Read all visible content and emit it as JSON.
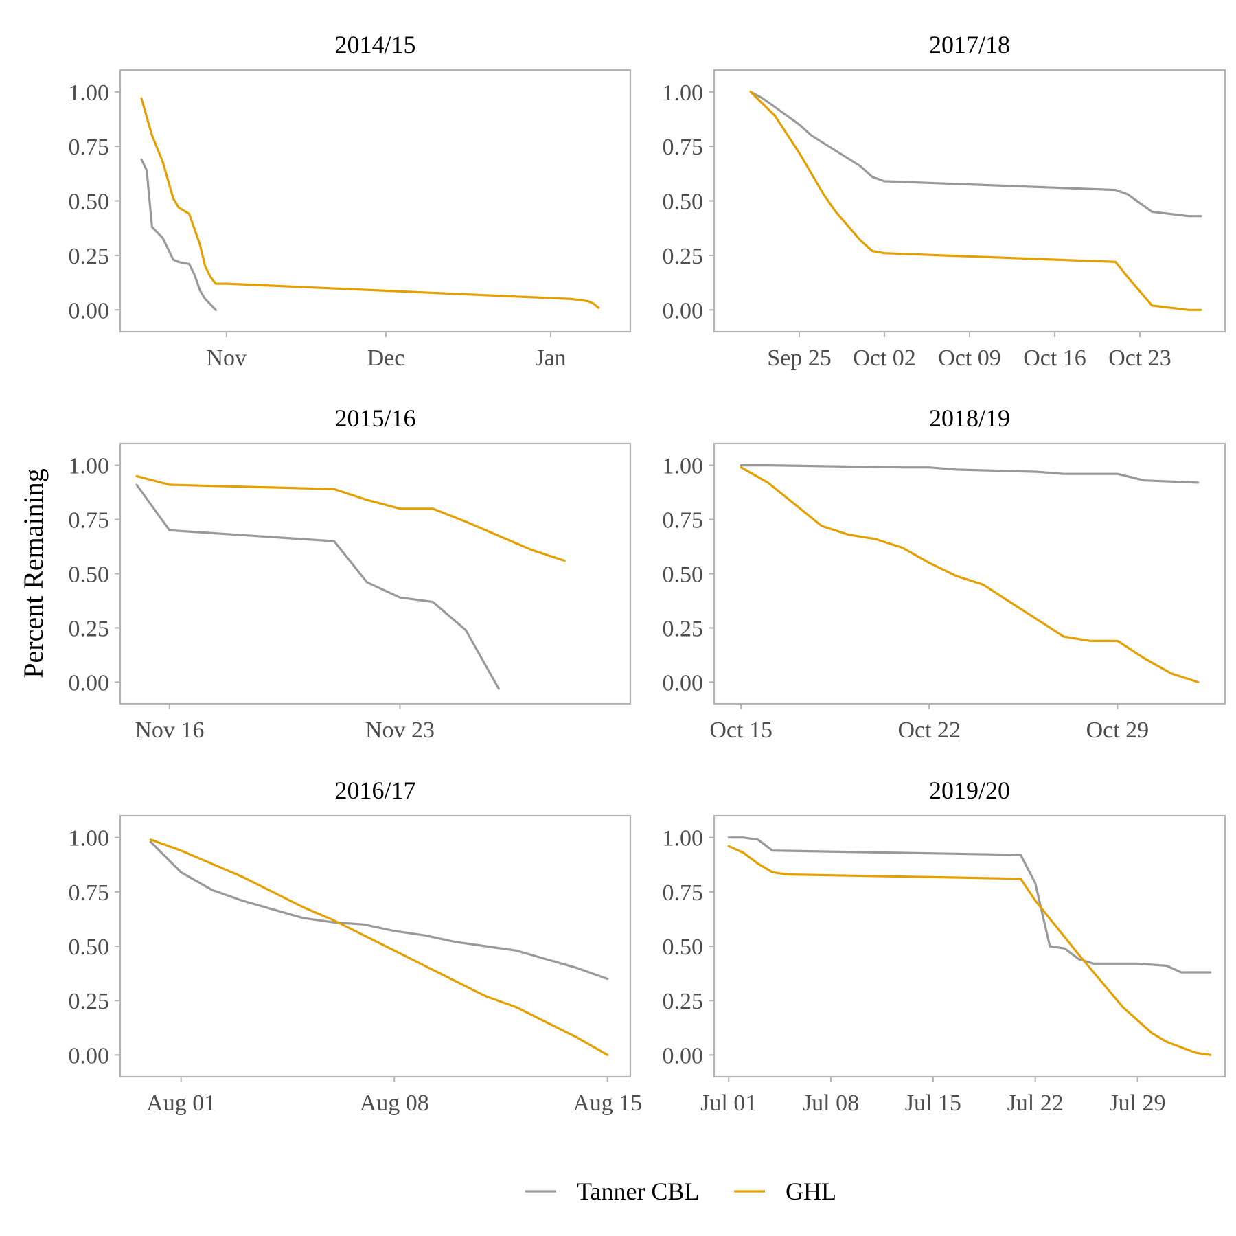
{
  "y_axis_title": "Percent Remaining",
  "colors": {
    "tanner_cbl": "#999999",
    "ghl": "#E69F00"
  },
  "legend": [
    {
      "name": "Tanner CBL",
      "color": "#999999"
    },
    {
      "name": "GHL",
      "color": "#E69F00"
    }
  ],
  "chart_data": [
    {
      "type": "line",
      "title": "2014/15",
      "x_type": "date",
      "xlim": [
        "2014-10-12",
        "2015-01-16"
      ],
      "ylim": [
        -0.1,
        1.1
      ],
      "x_ticks": [
        {
          "date": "2014-11-01",
          "label": "Nov"
        },
        {
          "date": "2014-12-01",
          "label": "Dec"
        },
        {
          "date": "2015-01-01",
          "label": "Jan"
        }
      ],
      "y_ticks": [
        0,
        0.25,
        0.5,
        0.75,
        1
      ],
      "y_tick_labels": [
        "0.00",
        "0.25",
        "0.50",
        "0.75",
        "1.00"
      ],
      "series": [
        {
          "name": "Tanner CBL",
          "color": "#999999",
          "points": [
            [
              "2014-10-16",
              0.69
            ],
            [
              "2014-10-17",
              0.64
            ],
            [
              "2014-10-18",
              0.38
            ],
            [
              "2014-10-20",
              0.33
            ],
            [
              "2014-10-22",
              0.23
            ],
            [
              "2014-10-23",
              0.22
            ],
            [
              "2014-10-25",
              0.21
            ],
            [
              "2014-10-26",
              0.16
            ],
            [
              "2014-10-27",
              0.09
            ],
            [
              "2014-10-28",
              0.05
            ],
            [
              "2014-10-30",
              0.0
            ]
          ]
        },
        {
          "name": "GHL",
          "color": "#E69F00",
          "points": [
            [
              "2014-10-16",
              0.97
            ],
            [
              "2014-10-18",
              0.8
            ],
            [
              "2014-10-19",
              0.74
            ],
            [
              "2014-10-20",
              0.68
            ],
            [
              "2014-10-22",
              0.51
            ],
            [
              "2014-10-23",
              0.47
            ],
            [
              "2014-10-25",
              0.44
            ],
            [
              "2014-10-27",
              0.3
            ],
            [
              "2014-10-28",
              0.2
            ],
            [
              "2014-10-29",
              0.15
            ],
            [
              "2014-10-30",
              0.12
            ],
            [
              "2014-11-01",
              0.12
            ],
            [
              "2015-01-05",
              0.05
            ],
            [
              "2015-01-08",
              0.04
            ],
            [
              "2015-01-09",
              0.03
            ],
            [
              "2015-01-10",
              0.01
            ]
          ]
        }
      ]
    },
    {
      "type": "line",
      "title": "2017/18",
      "x_type": "date",
      "xlim": [
        "2017-09-18",
        "2017-10-30"
      ],
      "ylim": [
        -0.1,
        1.1
      ],
      "x_ticks": [
        {
          "date": "2017-09-25",
          "label": "Sep 25"
        },
        {
          "date": "2017-10-02",
          "label": "Oct 02"
        },
        {
          "date": "2017-10-09",
          "label": "Oct 09"
        },
        {
          "date": "2017-10-16",
          "label": "Oct 16"
        },
        {
          "date": "2017-10-23",
          "label": "Oct 23"
        }
      ],
      "y_ticks": [
        0,
        0.25,
        0.5,
        0.75,
        1
      ],
      "y_tick_labels": [
        "0.00",
        "0.25",
        "0.50",
        "0.75",
        "1.00"
      ],
      "series": [
        {
          "name": "Tanner CBL",
          "color": "#999999",
          "points": [
            [
              "2017-09-21",
              1.0
            ],
            [
              "2017-09-22",
              0.97
            ],
            [
              "2017-09-23",
              0.93
            ],
            [
              "2017-09-25",
              0.85
            ],
            [
              "2017-09-26",
              0.8
            ],
            [
              "2017-09-30",
              0.66
            ],
            [
              "2017-10-01",
              0.61
            ],
            [
              "2017-10-02",
              0.59
            ],
            [
              "2017-10-21",
              0.55
            ],
            [
              "2017-10-22",
              0.53
            ],
            [
              "2017-10-23",
              0.49
            ],
            [
              "2017-10-24",
              0.45
            ],
            [
              "2017-10-27",
              0.43
            ],
            [
              "2017-10-28",
              0.43
            ]
          ]
        },
        {
          "name": "GHL",
          "color": "#E69F00",
          "points": [
            [
              "2017-09-21",
              1.0
            ],
            [
              "2017-09-23",
              0.89
            ],
            [
              "2017-09-25",
              0.72
            ],
            [
              "2017-09-27",
              0.53
            ],
            [
              "2017-09-28",
              0.45
            ],
            [
              "2017-09-30",
              0.32
            ],
            [
              "2017-10-01",
              0.27
            ],
            [
              "2017-10-02",
              0.26
            ],
            [
              "2017-10-21",
              0.22
            ],
            [
              "2017-10-22",
              0.15
            ],
            [
              "2017-10-24",
              0.02
            ],
            [
              "2017-10-27",
              0.0
            ],
            [
              "2017-10-28",
              0.0
            ]
          ]
        }
      ]
    },
    {
      "type": "line",
      "title": "2015/16",
      "x_type": "date",
      "xlim": [
        "2015-11-14.5",
        "2015-11-30"
      ],
      "ylim": [
        -0.1,
        1.1
      ],
      "x_ticks": [
        {
          "date": "2015-11-16",
          "label": "Nov 16"
        },
        {
          "date": "2015-11-23",
          "label": "Nov 23"
        }
      ],
      "y_ticks": [
        0,
        0.25,
        0.5,
        0.75,
        1
      ],
      "y_tick_labels": [
        "0.00",
        "0.25",
        "0.50",
        "0.75",
        "1.00"
      ],
      "series": [
        {
          "name": "Tanner CBL",
          "color": "#999999",
          "points": [
            [
              "2015-11-15",
              0.91
            ],
            [
              "2015-11-16",
              0.7
            ],
            [
              "2015-11-21",
              0.65
            ],
            [
              "2015-11-22",
              0.46
            ],
            [
              "2015-11-23",
              0.39
            ],
            [
              "2015-11-24",
              0.37
            ],
            [
              "2015-11-25",
              0.24
            ],
            [
              "2015-11-26",
              -0.03
            ]
          ]
        },
        {
          "name": "GHL",
          "color": "#E69F00",
          "points": [
            [
              "2015-11-15",
              0.95
            ],
            [
              "2015-11-16",
              0.91
            ],
            [
              "2015-11-21",
              0.89
            ],
            [
              "2015-11-22",
              0.84
            ],
            [
              "2015-11-23",
              0.8
            ],
            [
              "2015-11-24",
              0.8
            ],
            [
              "2015-11-25",
              0.74
            ],
            [
              "2015-11-27",
              0.61
            ],
            [
              "2015-11-28",
              0.56
            ]
          ]
        }
      ]
    },
    {
      "type": "line",
      "title": "2018/19",
      "x_type": "date",
      "xlim": [
        "2018-10-14",
        "2018-11-02"
      ],
      "ylim": [
        -0.1,
        1.1
      ],
      "x_ticks": [
        {
          "date": "2018-10-15",
          "label": "Oct 15"
        },
        {
          "date": "2018-10-22",
          "label": "Oct 22"
        },
        {
          "date": "2018-10-29",
          "label": "Oct 29"
        }
      ],
      "y_ticks": [
        0,
        0.25,
        0.5,
        0.75,
        1
      ],
      "y_tick_labels": [
        "0.00",
        "0.25",
        "0.50",
        "0.75",
        "1.00"
      ],
      "series": [
        {
          "name": "Tanner CBL",
          "color": "#999999",
          "points": [
            [
              "2018-10-15",
              1.0
            ],
            [
              "2018-10-16",
              1.0
            ],
            [
              "2018-10-21",
              0.99
            ],
            [
              "2018-10-22",
              0.99
            ],
            [
              "2018-10-23",
              0.98
            ],
            [
              "2018-10-26",
              0.97
            ],
            [
              "2018-10-27",
              0.96
            ],
            [
              "2018-10-29",
              0.96
            ],
            [
              "2018-10-30",
              0.93
            ],
            [
              "2018-11-01",
              0.92
            ]
          ]
        },
        {
          "name": "GHL",
          "color": "#E69F00",
          "points": [
            [
              "2018-10-15",
              0.99
            ],
            [
              "2018-10-16",
              0.92
            ],
            [
              "2018-10-17",
              0.82
            ],
            [
              "2018-10-18",
              0.72
            ],
            [
              "2018-10-19",
              0.68
            ],
            [
              "2018-10-20",
              0.66
            ],
            [
              "2018-10-21",
              0.62
            ],
            [
              "2018-10-22",
              0.55
            ],
            [
              "2018-10-23",
              0.49
            ],
            [
              "2018-10-24",
              0.45
            ],
            [
              "2018-10-25",
              0.37
            ],
            [
              "2018-10-26",
              0.29
            ],
            [
              "2018-10-27",
              0.21
            ],
            [
              "2018-10-28",
              0.19
            ],
            [
              "2018-10-29",
              0.19
            ],
            [
              "2018-10-30",
              0.11
            ],
            [
              "2018-10-31",
              0.04
            ],
            [
              "2018-11-01",
              0.0
            ]
          ]
        }
      ]
    },
    {
      "type": "line",
      "title": "2016/17",
      "x_type": "date",
      "xlim": [
        "2016-07-30",
        "2016-08-15.75"
      ],
      "ylim": [
        -0.1,
        1.1
      ],
      "x_ticks": [
        {
          "date": "2016-08-01",
          "label": "Aug 01"
        },
        {
          "date": "2016-08-08",
          "label": "Aug 08"
        },
        {
          "date": "2016-08-15",
          "label": "Aug 15"
        }
      ],
      "y_ticks": [
        0,
        0.25,
        0.5,
        0.75,
        1
      ],
      "y_tick_labels": [
        "0.00",
        "0.25",
        "0.50",
        "0.75",
        "1.00"
      ],
      "series": [
        {
          "name": "Tanner CBL",
          "color": "#999999",
          "points": [
            [
              "2016-07-31",
              0.98
            ],
            [
              "2016-08-01",
              0.84
            ],
            [
              "2016-08-02",
              0.76
            ],
            [
              "2016-08-03",
              0.71
            ],
            [
              "2016-08-04",
              0.67
            ],
            [
              "2016-08-05",
              0.63
            ],
            [
              "2016-08-06",
              0.61
            ],
            [
              "2016-08-07",
              0.6
            ],
            [
              "2016-08-08",
              0.57
            ],
            [
              "2016-08-09",
              0.55
            ],
            [
              "2016-08-10",
              0.52
            ],
            [
              "2016-08-11",
              0.5
            ],
            [
              "2016-08-12",
              0.48
            ],
            [
              "2016-08-13",
              0.44
            ],
            [
              "2016-08-14",
              0.4
            ],
            [
              "2016-08-15",
              0.35
            ]
          ]
        },
        {
          "name": "GHL",
          "color": "#E69F00",
          "points": [
            [
              "2016-07-31",
              0.99
            ],
            [
              "2016-08-01",
              0.94
            ],
            [
              "2016-08-02",
              0.88
            ],
            [
              "2016-08-03",
              0.82
            ],
            [
              "2016-08-04",
              0.75
            ],
            [
              "2016-08-05",
              0.68
            ],
            [
              "2016-08-06",
              0.62
            ],
            [
              "2016-08-07",
              0.55
            ],
            [
              "2016-08-08",
              0.48
            ],
            [
              "2016-08-09",
              0.41
            ],
            [
              "2016-08-10",
              0.34
            ],
            [
              "2016-08-11",
              0.27
            ],
            [
              "2016-08-12",
              0.22
            ],
            [
              "2016-08-13",
              0.15
            ],
            [
              "2016-08-14",
              0.08
            ],
            [
              "2016-08-15",
              0.0
            ]
          ]
        }
      ]
    },
    {
      "type": "line",
      "title": "2019/20",
      "x_type": "date",
      "xlim": [
        "2019-06-30",
        "2019-08-04"
      ],
      "ylim": [
        -0.1,
        1.1
      ],
      "x_ticks": [
        {
          "date": "2019-07-01",
          "label": "Jul 01"
        },
        {
          "date": "2019-07-08",
          "label": "Jul 08"
        },
        {
          "date": "2019-07-15",
          "label": "Jul 15"
        },
        {
          "date": "2019-07-22",
          "label": "Jul 22"
        },
        {
          "date": "2019-07-29",
          "label": "Jul 29"
        }
      ],
      "y_ticks": [
        0,
        0.25,
        0.5,
        0.75,
        1
      ],
      "y_tick_labels": [
        "0.00",
        "0.25",
        "0.50",
        "0.75",
        "1.00"
      ],
      "series": [
        {
          "name": "Tanner CBL",
          "color": "#999999",
          "points": [
            [
              "2019-07-01",
              1.0
            ],
            [
              "2019-07-02",
              1.0
            ],
            [
              "2019-07-03",
              0.99
            ],
            [
              "2019-07-04",
              0.94
            ],
            [
              "2019-07-21",
              0.92
            ],
            [
              "2019-07-22",
              0.79
            ],
            [
              "2019-07-23",
              0.5
            ],
            [
              "2019-07-24",
              0.49
            ],
            [
              "2019-07-25",
              0.44
            ],
            [
              "2019-07-26",
              0.42
            ],
            [
              "2019-07-29",
              0.42
            ],
            [
              "2019-07-31",
              0.41
            ],
            [
              "2019-08-01",
              0.38
            ],
            [
              "2019-08-03",
              0.38
            ]
          ]
        },
        {
          "name": "GHL",
          "color": "#E69F00",
          "points": [
            [
              "2019-07-01",
              0.96
            ],
            [
              "2019-07-02",
              0.93
            ],
            [
              "2019-07-03",
              0.88
            ],
            [
              "2019-07-04",
              0.84
            ],
            [
              "2019-07-05",
              0.83
            ],
            [
              "2019-07-21",
              0.81
            ],
            [
              "2019-07-22",
              0.71
            ],
            [
              "2019-07-25",
              0.46
            ],
            [
              "2019-07-28",
              0.22
            ],
            [
              "2019-07-30",
              0.1
            ],
            [
              "2019-07-31",
              0.06
            ],
            [
              "2019-08-02",
              0.01
            ],
            [
              "2019-08-03",
              0.0
            ]
          ]
        }
      ]
    }
  ]
}
